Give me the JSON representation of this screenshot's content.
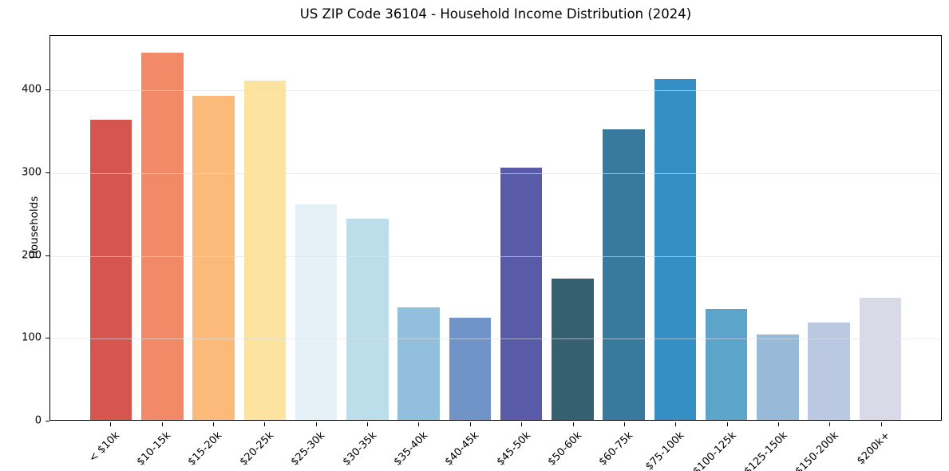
{
  "title": "US ZIP Code 36104 - Household Income Distribution (2024)",
  "chart_data": {
    "type": "bar",
    "title": "US ZIP Code 36104 - Household Income Distribution (2024)",
    "xlabel": "",
    "ylabel": "Households",
    "categories": [
      "< $10k",
      "$10-15k",
      "$15-20k",
      "$20-25k",
      "$25-30k",
      "$30-35k",
      "$35-40k",
      "$40-45k",
      "$45-50k",
      "$50-60k",
      "$60-75k",
      "$75-100k",
      "$100-125k",
      "$125-150k",
      "$150-200k",
      "$200k+"
    ],
    "values": [
      363,
      444,
      392,
      410,
      261,
      243,
      136,
      124,
      305,
      171,
      351,
      412,
      134,
      103,
      118,
      148
    ],
    "bar_colors": [
      "#d6564f",
      "#f28a68",
      "#fbba79",
      "#fce3a0",
      "#e4f2f7",
      "#bcdeeb",
      "#91bfdc",
      "#7094c8",
      "#5a5ba8",
      "#35606f",
      "#387a9e",
      "#368fc4",
      "#5da4ca",
      "#97bad9",
      "#bac9e1",
      "#d8dae8"
    ],
    "ylim": [
      0,
      466
    ],
    "yticks": [
      0,
      100,
      200,
      300,
      400
    ],
    "grid": "horizontal",
    "grid_color": "#e9ebf0",
    "spine_color": "#000000",
    "background_color": "#ffffff",
    "x_tick_rotation_deg": 45,
    "legend": "none"
  }
}
